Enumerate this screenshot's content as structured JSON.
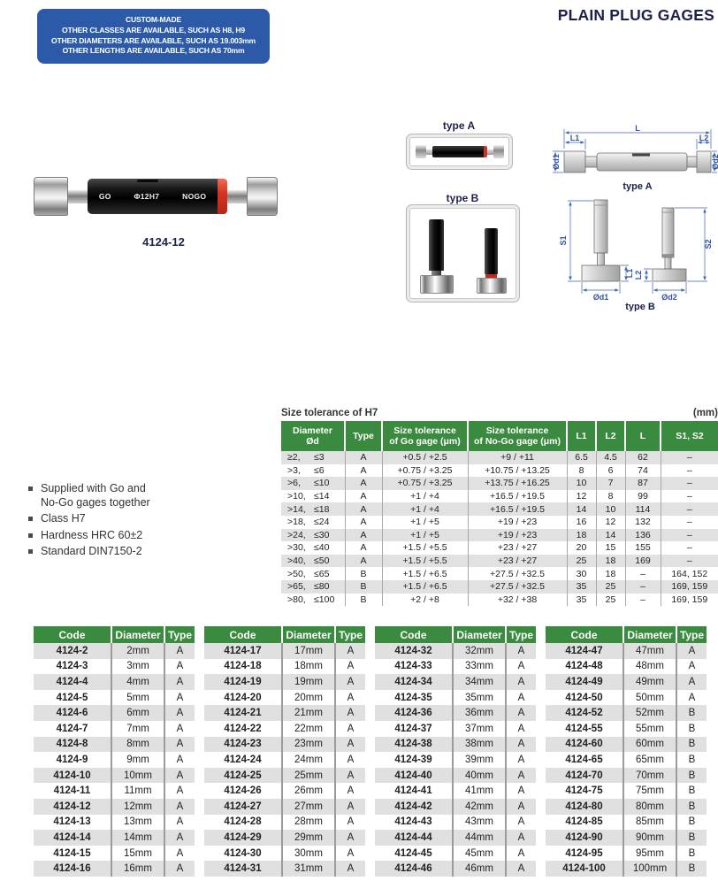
{
  "header": {
    "title": "PLAIN PLUG GAGES"
  },
  "banner": {
    "lines": [
      "CUSTOM-MADE",
      "OTHER CLASSES ARE AVAILABLE, SUCH AS H8, H9",
      "OTHER DIAMETERS ARE AVAILABLE, SUCH AS 19.003mm",
      "OTHER LENGTHS ARE AVAILABLE, SUCH AS 70mm"
    ]
  },
  "product": {
    "go_label": "GO",
    "size_label": "Φ12H7",
    "nogo_label": "NOGO",
    "caption": "4124-12"
  },
  "thumbs": {
    "a_label": "type A",
    "b_label": "type B"
  },
  "diagrams": {
    "a": {
      "caption": "type A",
      "l": "L",
      "l1": "L1",
      "l2": "L2",
      "d1": "Ød1",
      "d2": "Ød2"
    },
    "b": {
      "caption": "type B",
      "s1": "S1",
      "s2": "S2",
      "l1": "L1",
      "l2": "L2",
      "d1": "Ød1",
      "d2": "Ød2"
    }
  },
  "features": [
    "Supplied with Go and\nNo-Go gages together",
    "Class H7",
    "Hardness HRC 60±2",
    "Standard DIN7150-2"
  ],
  "tolerance_table": {
    "title": "Size tolerance of H7",
    "unit": "(mm)",
    "headers": [
      "Diameter\nØd",
      "Type",
      "Size tolerance\nof Go gage (μm)",
      "Size tolerance\nof No-Go gage (μm)",
      "L1",
      "L2",
      "L",
      "S1, S2"
    ],
    "rows": [
      {
        "d": [
          "≥2,",
          "≤3"
        ],
        "t": "A",
        "go": "+0.5 / +2.5",
        "ng": "+9 / +11",
        "l1": "6.5",
        "l2": "4.5",
        "l": "62",
        "s": "–"
      },
      {
        "d": [
          ">3,",
          "≤6"
        ],
        "t": "A",
        "go": "+0.75 / +3.25",
        "ng": "+10.75 / +13.25",
        "l1": "8",
        "l2": "6",
        "l": "74",
        "s": "–"
      },
      {
        "d": [
          ">6,",
          "≤10"
        ],
        "t": "A",
        "go": "+0.75 / +3.25",
        "ng": "+13.75 / +16.25",
        "l1": "10",
        "l2": "7",
        "l": "87",
        "s": "–"
      },
      {
        "d": [
          ">10,",
          "≤14"
        ],
        "t": "A",
        "go": "+1 / +4",
        "ng": "+16.5 / +19.5",
        "l1": "12",
        "l2": "8",
        "l": "99",
        "s": "–"
      },
      {
        "d": [
          ">14,",
          "≤18"
        ],
        "t": "A",
        "go": "+1 / +4",
        "ng": "+16.5 / +19.5",
        "l1": "14",
        "l2": "10",
        "l": "114",
        "s": "–"
      },
      {
        "d": [
          ">18,",
          "≤24"
        ],
        "t": "A",
        "go": "+1 / +5",
        "ng": "+19 / +23",
        "l1": "16",
        "l2": "12",
        "l": "132",
        "s": "–"
      },
      {
        "d": [
          ">24,",
          "≤30"
        ],
        "t": "A",
        "go": "+1 / +5",
        "ng": "+19 / +23",
        "l1": "18",
        "l2": "14",
        "l": "136",
        "s": "–"
      },
      {
        "d": [
          ">30,",
          "≤40"
        ],
        "t": "A",
        "go": "+1.5 / +5.5",
        "ng": "+23 / +27",
        "l1": "20",
        "l2": "15",
        "l": "155",
        "s": "–"
      },
      {
        "d": [
          ">40,",
          "≤50"
        ],
        "t": "A",
        "go": "+1.5 / +5.5",
        "ng": "+23 / +27",
        "l1": "25",
        "l2": "18",
        "l": "169",
        "s": "–"
      },
      {
        "d": [
          ">50,",
          "≤65"
        ],
        "t": "B",
        "go": "+1.5 / +6.5",
        "ng": "+27.5 / +32.5",
        "l1": "30",
        "l2": "18",
        "l": "–",
        "s": "164, 152"
      },
      {
        "d": [
          ">65,",
          "≤80"
        ],
        "t": "B",
        "go": "+1.5 / +6.5",
        "ng": "+27.5 / +32.5",
        "l1": "35",
        "l2": "25",
        "l": "–",
        "s": "169, 159"
      },
      {
        "d": [
          ">80,",
          "≤100"
        ],
        "t": "B",
        "go": "+2 / +8",
        "ng": "+32 / +38",
        "l1": "35",
        "l2": "25",
        "l": "–",
        "s": "169, 159"
      }
    ]
  },
  "code_tables": [
    {
      "headers": [
        "Code",
        "Diameter",
        "Type"
      ],
      "rows": [
        [
          "4124-2",
          "2mm",
          "A"
        ],
        [
          "4124-3",
          "3mm",
          "A"
        ],
        [
          "4124-4",
          "4mm",
          "A"
        ],
        [
          "4124-5",
          "5mm",
          "A"
        ],
        [
          "4124-6",
          "6mm",
          "A"
        ],
        [
          "4124-7",
          "7mm",
          "A"
        ],
        [
          "4124-8",
          "8mm",
          "A"
        ],
        [
          "4124-9",
          "9mm",
          "A"
        ],
        [
          "4124-10",
          "10mm",
          "A"
        ],
        [
          "4124-11",
          "11mm",
          "A"
        ],
        [
          "4124-12",
          "12mm",
          "A"
        ],
        [
          "4124-13",
          "13mm",
          "A"
        ],
        [
          "4124-14",
          "14mm",
          "A"
        ],
        [
          "4124-15",
          "15mm",
          "A"
        ],
        [
          "4124-16",
          "16mm",
          "A"
        ]
      ]
    },
    {
      "headers": [
        "Code",
        "Diameter",
        "Type"
      ],
      "rows": [
        [
          "4124-17",
          "17mm",
          "A"
        ],
        [
          "4124-18",
          "18mm",
          "A"
        ],
        [
          "4124-19",
          "19mm",
          "A"
        ],
        [
          "4124-20",
          "20mm",
          "A"
        ],
        [
          "4124-21",
          "21mm",
          "A"
        ],
        [
          "4124-22",
          "22mm",
          "A"
        ],
        [
          "4124-23",
          "23mm",
          "A"
        ],
        [
          "4124-24",
          "24mm",
          "A"
        ],
        [
          "4124-25",
          "25mm",
          "A"
        ],
        [
          "4124-26",
          "26mm",
          "A"
        ],
        [
          "4124-27",
          "27mm",
          "A"
        ],
        [
          "4124-28",
          "28mm",
          "A"
        ],
        [
          "4124-29",
          "29mm",
          "A"
        ],
        [
          "4124-30",
          "30mm",
          "A"
        ],
        [
          "4124-31",
          "31mm",
          "A"
        ]
      ]
    },
    {
      "headers": [
        "Code",
        "Diameter",
        "Type"
      ],
      "rows": [
        [
          "4124-32",
          "32mm",
          "A"
        ],
        [
          "4124-33",
          "33mm",
          "A"
        ],
        [
          "4124-34",
          "34mm",
          "A"
        ],
        [
          "4124-35",
          "35mm",
          "A"
        ],
        [
          "4124-36",
          "36mm",
          "A"
        ],
        [
          "4124-37",
          "37mm",
          "A"
        ],
        [
          "4124-38",
          "38mm",
          "A"
        ],
        [
          "4124-39",
          "39mm",
          "A"
        ],
        [
          "4124-40",
          "40mm",
          "A"
        ],
        [
          "4124-41",
          "41mm",
          "A"
        ],
        [
          "4124-42",
          "42mm",
          "A"
        ],
        [
          "4124-43",
          "43mm",
          "A"
        ],
        [
          "4124-44",
          "44mm",
          "A"
        ],
        [
          "4124-45",
          "45mm",
          "A"
        ],
        [
          "4124-46",
          "46mm",
          "A"
        ]
      ]
    },
    {
      "headers": [
        "Code",
        "Diameter",
        "Type"
      ],
      "rows": [
        [
          "4124-47",
          "47mm",
          "A"
        ],
        [
          "4124-48",
          "48mm",
          "A"
        ],
        [
          "4124-49",
          "49mm",
          "A"
        ],
        [
          "4124-50",
          "50mm",
          "A"
        ],
        [
          "4124-52",
          "52mm",
          "B"
        ],
        [
          "4124-55",
          "55mm",
          "B"
        ],
        [
          "4124-60",
          "60mm",
          "B"
        ],
        [
          "4124-65",
          "65mm",
          "B"
        ],
        [
          "4124-70",
          "70mm",
          "B"
        ],
        [
          "4124-75",
          "75mm",
          "B"
        ],
        [
          "4124-80",
          "80mm",
          "B"
        ],
        [
          "4124-85",
          "85mm",
          "B"
        ],
        [
          "4124-90",
          "90mm",
          "B"
        ],
        [
          "4124-95",
          "95mm",
          "B"
        ],
        [
          "4124-100",
          "100mm",
          "B"
        ]
      ]
    }
  ],
  "colors": {
    "accent_green": "#3a8b3f",
    "banner_blue": "#2c5aa8",
    "dim_blue": "#3c63b2",
    "nogo_red": "#d63322"
  }
}
